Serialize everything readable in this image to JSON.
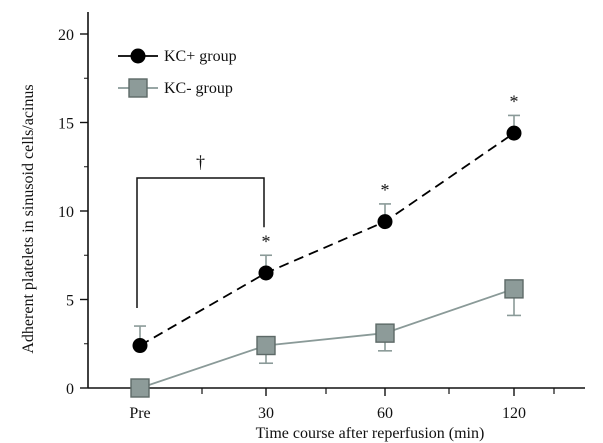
{
  "chart_data": {
    "type": "line",
    "title": "",
    "xlabel": "Time course after reperfusion (min)",
    "ylabel": "Adherent platelets in sinusoid cells/acinus",
    "categories": [
      "Pre",
      "30",
      "60",
      "120"
    ],
    "ylim": [
      0,
      20
    ],
    "yticks": [
      "0",
      "5",
      "10",
      "15",
      "20"
    ],
    "grid": false,
    "legend_position": "top-left",
    "series": [
      {
        "name": "KC+ group",
        "values": [
          2.4,
          6.5,
          9.4,
          14.4
        ],
        "error": [
          1.1,
          1.0,
          1.0,
          1.0
        ],
        "marker": "circle",
        "line_style": "dashed",
        "color": "#000000",
        "significance": [
          "",
          "*",
          "*",
          "*"
        ]
      },
      {
        "name": "KC- group",
        "values": [
          0,
          2.4,
          3.1,
          5.6
        ],
        "error": [
          0,
          1.0,
          1.0,
          1.5
        ],
        "marker": "square",
        "line_style": "solid",
        "color": "#8a9a98",
        "marker_fill": "#8d9b99",
        "marker_edge": "#5d6967"
      }
    ],
    "bracket": {
      "from": "Pre",
      "to": "30",
      "label": "†"
    }
  }
}
